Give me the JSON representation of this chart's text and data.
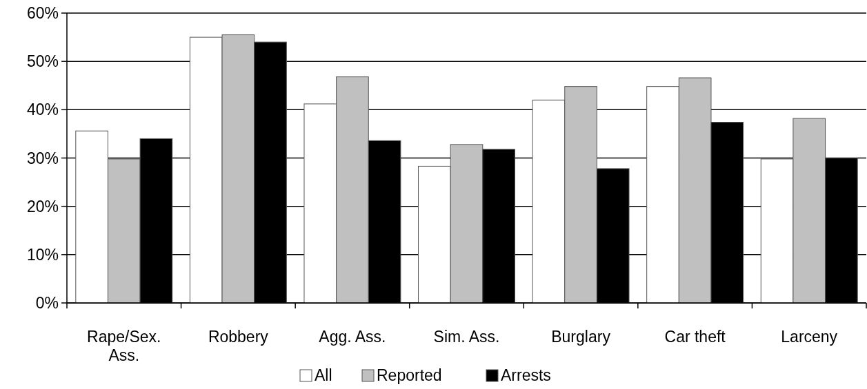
{
  "chart_data": {
    "type": "bar",
    "categories": [
      "Rape/Sex. Ass.",
      "Robbery",
      "Agg. Ass.",
      "Sim. Ass.",
      "Burglary",
      "Car theft",
      "Larceny"
    ],
    "series": [
      {
        "name": "All",
        "color": "#ffffff",
        "values": [
          35.6,
          55.0,
          41.2,
          28.3,
          42.0,
          44.8,
          29.8
        ]
      },
      {
        "name": "Reported",
        "color": "#c0c0c0",
        "values": [
          29.8,
          55.5,
          46.8,
          32.8,
          44.8,
          46.6,
          38.2
        ]
      },
      {
        "name": "Arrests",
        "color": "#000000",
        "values": [
          34.0,
          54.0,
          33.6,
          31.8,
          27.8,
          37.4,
          30.0
        ]
      }
    ],
    "ylim": [
      0,
      60
    ],
    "yticks": [
      {
        "value": 0,
        "label": "0%"
      },
      {
        "value": 10,
        "label": "10%"
      },
      {
        "value": 20,
        "label": "20%"
      },
      {
        "value": 30,
        "label": "30%"
      },
      {
        "value": 40,
        "label": "40%"
      },
      {
        "value": 50,
        "label": "50%"
      },
      {
        "value": 60,
        "label": "60%"
      }
    ],
    "grid": "y",
    "legend": "bottom"
  }
}
